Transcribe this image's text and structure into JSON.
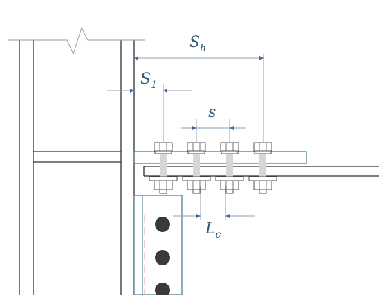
{
  "labels": {
    "sh_main": "S",
    "sh_sub": "h",
    "s1_main": "S",
    "s1_sub": "1",
    "s_main": "s",
    "lc_main": "L",
    "lc_sub": "c"
  },
  "colors": {
    "steel_line": "#303030",
    "dim_line": "#8aa2b8",
    "arrow": "#4a64a8",
    "plate_edge": "#4f7f95",
    "bolt_fill": "#d6d6d6",
    "hole_fill": "#3a3a3a",
    "text": "#2f5a78"
  },
  "diagram": {
    "top_bolt_count": 4,
    "web_hole_count_visible": 3
  }
}
